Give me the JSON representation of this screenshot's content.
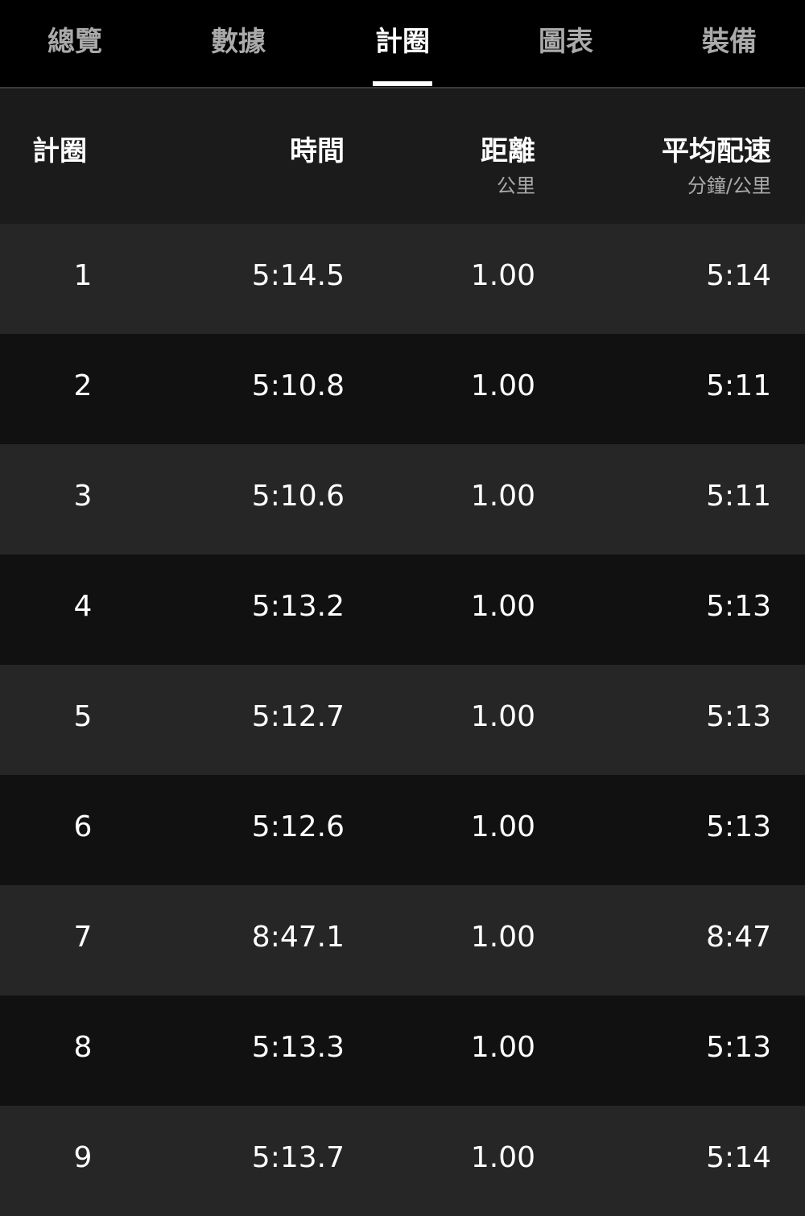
{
  "tabs": [
    "總覽",
    "數據",
    "計圈",
    "圖表",
    "裝備"
  ],
  "active_tab": "計圈",
  "table": {
    "headers": [
      {
        "label": "計圈",
        "unit": ""
      },
      {
        "label": "時間",
        "unit": ""
      },
      {
        "label": "距離",
        "unit": "公里"
      },
      {
        "label": "平均配速",
        "unit": "分鐘/公里"
      }
    ],
    "rows": [
      [
        "1",
        "5:14.5",
        "1.00",
        "5:14"
      ],
      [
        "2",
        "5:10.8",
        "1.00",
        "5:11"
      ],
      [
        "3",
        "5:10.6",
        "1.00",
        "5:11"
      ],
      [
        "4",
        "5:13.2",
        "1.00",
        "5:13"
      ],
      [
        "5",
        "5:12.7",
        "1.00",
        "5:13"
      ],
      [
        "6",
        "5:12.6",
        "1.00",
        "5:13"
      ],
      [
        "7",
        "8:47.1",
        "1.00",
        "8:47"
      ],
      [
        "8",
        "5:13.3",
        "1.00",
        "5:13"
      ],
      [
        "9",
        "5:13.7",
        "1.00",
        "5:14"
      ]
    ]
  }
}
